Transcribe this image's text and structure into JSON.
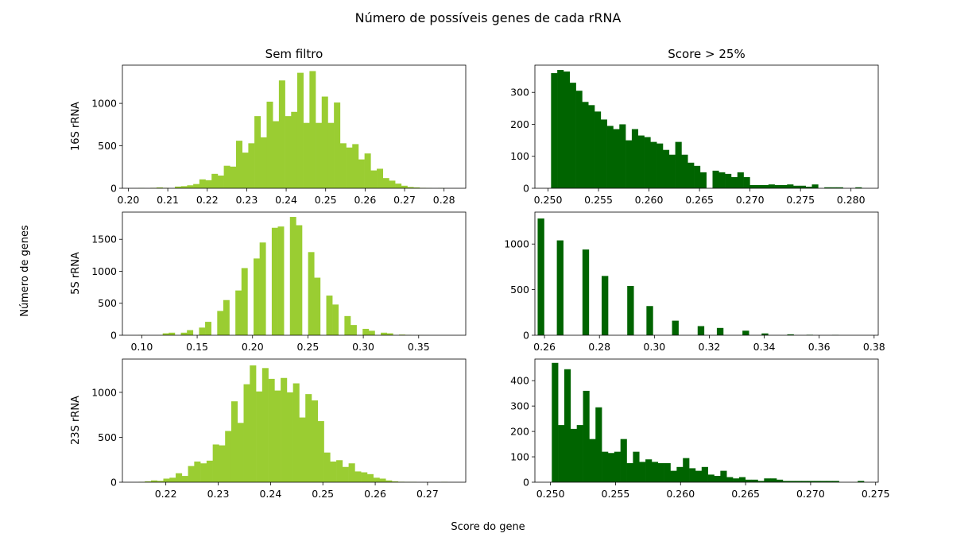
{
  "figure": {
    "title": "Número de possíveis genes de cada rRNA",
    "xlabel": "Score do gene",
    "ylabel": "Número de genes",
    "columns": [
      "Sem filtro",
      "Score > 25%"
    ],
    "rows": [
      "16S rRNA",
      "5S rRNA",
      "23S rRNA"
    ]
  },
  "colors": {
    "unfiltered": "#9acd32",
    "filtered": "#006400"
  },
  "chart_data": [
    {
      "id": "16s-unfiltered",
      "type": "histogram",
      "row_label": "16S rRNA",
      "column_title": "Sem filtro",
      "color": "#9acd32",
      "xlim": [
        0.1985,
        0.2855
      ],
      "ylim": [
        0,
        1450
      ],
      "xticks": [
        0.2,
        0.21,
        0.22,
        0.23,
        0.24,
        0.25,
        0.26,
        0.27,
        0.28
      ],
      "xtick_labels": [
        "0.20",
        "0.21",
        "0.22",
        "0.23",
        "0.24",
        "0.25",
        "0.26",
        "0.27",
        "0.28"
      ],
      "yticks": [
        0,
        500,
        1000
      ],
      "ytick_labels": [
        "0",
        "500",
        "1000"
      ],
      "bin_start": 0.2025,
      "bin_width": 0.00155,
      "counts": [
        3,
        0,
        5,
        10,
        5,
        0,
        20,
        25,
        35,
        50,
        105,
        95,
        170,
        150,
        265,
        255,
        560,
        420,
        530,
        850,
        600,
        1020,
        790,
        1270,
        850,
        900,
        1360,
        770,
        1380,
        770,
        1080,
        770,
        1010,
        530,
        480,
        520,
        340,
        410,
        210,
        230,
        120,
        90,
        55,
        30,
        15,
        10,
        5,
        3,
        0,
        3
      ]
    },
    {
      "id": "16s-filtered",
      "type": "histogram",
      "row_label": "16S rRNA",
      "column_title": "Score > 25%",
      "color": "#006400",
      "xlim": [
        0.2487,
        0.2827
      ],
      "ylim": [
        0,
        385
      ],
      "xticks": [
        0.25,
        0.255,
        0.26,
        0.265,
        0.27,
        0.275,
        0.28
      ],
      "xtick_labels": [
        "0.250",
        "0.255",
        "0.260",
        "0.265",
        "0.270",
        "0.275",
        "0.280"
      ],
      "yticks": [
        0,
        100,
        200,
        300
      ],
      "ytick_labels": [
        "0",
        "100",
        "200",
        "300"
      ],
      "bin_start": 0.2503,
      "bin_width": 0.000615,
      "counts": [
        360,
        370,
        365,
        330,
        305,
        270,
        260,
        240,
        215,
        195,
        185,
        200,
        150,
        185,
        165,
        160,
        145,
        140,
        120,
        105,
        145,
        105,
        80,
        70,
        50,
        0,
        55,
        50,
        45,
        35,
        50,
        35,
        10,
        10,
        10,
        12,
        10,
        10,
        12,
        8,
        8,
        5,
        12,
        0,
        3,
        3,
        3,
        0,
        0,
        3
      ]
    },
    {
      "id": "5s-unfiltered",
      "type": "histogram",
      "row_label": "5S rRNA",
      "column_title": "Sem filtro",
      "color": "#9acd32",
      "xlim": [
        0.0825,
        0.3925
      ],
      "ylim": [
        0,
        1925
      ],
      "xticks": [
        0.1,
        0.15,
        0.2,
        0.25,
        0.3,
        0.35
      ],
      "xtick_labels": [
        "0.10",
        "0.15",
        "0.20",
        "0.25",
        "0.30",
        "0.35"
      ],
      "yticks": [
        0,
        500,
        1000,
        1500
      ],
      "ytick_labels": [
        "0",
        "500",
        "1000",
        "1500"
      ],
      "bin_start": 0.097,
      "bin_width": 0.00547,
      "counts": [
        3,
        0,
        0,
        0,
        30,
        40,
        0,
        40,
        80,
        0,
        120,
        210,
        0,
        380,
        550,
        0,
        700,
        1050,
        0,
        1200,
        1450,
        0,
        1680,
        1700,
        0,
        1850,
        1720,
        0,
        1300,
        900,
        0,
        620,
        480,
        0,
        300,
        160,
        0,
        100,
        70,
        0,
        40,
        30,
        0,
        10,
        5,
        0,
        2,
        1,
        0,
        0
      ]
    },
    {
      "id": "5s-filtered",
      "type": "histogram",
      "row_label": "5S rRNA",
      "column_title": "Score > 25%",
      "color": "#006400",
      "xlim": [
        0.2565,
        0.3815
      ],
      "ylim": [
        0,
        1350
      ],
      "xticks": [
        0.26,
        0.28,
        0.3,
        0.32,
        0.34,
        0.36,
        0.38
      ],
      "xtick_labels": [
        "0.26",
        "0.28",
        "0.30",
        "0.32",
        "0.34",
        "0.36",
        "0.38"
      ],
      "yticks": [
        0,
        500,
        1000
      ],
      "ytick_labels": [
        "0",
        "500",
        "1000"
      ],
      "bin_start": 0.2575,
      "bin_width": 0.00233,
      "counts": [
        1280,
        0,
        0,
        1040,
        0,
        0,
        0,
        940,
        0,
        0,
        650,
        0,
        0,
        0,
        540,
        0,
        0,
        320,
        0,
        0,
        0,
        160,
        0,
        0,
        0,
        100,
        0,
        0,
        80,
        0,
        0,
        0,
        50,
        0,
        0,
        20,
        0,
        0,
        0,
        10,
        0,
        0,
        5,
        0,
        0,
        0,
        3,
        0,
        0,
        0
      ]
    },
    {
      "id": "23s-unfiltered",
      "type": "histogram",
      "row_label": "23S rRNA",
      "column_title": "Sem filtro",
      "color": "#9acd32",
      "xlim": [
        0.2117,
        0.2773
      ],
      "ylim": [
        0,
        1370
      ],
      "xticks": [
        0.22,
        0.23,
        0.24,
        0.25,
        0.26,
        0.27
      ],
      "xtick_labels": [
        "0.22",
        "0.23",
        "0.24",
        "0.25",
        "0.26",
        "0.27"
      ],
      "yticks": [
        0,
        500,
        1000
      ],
      "ytick_labels": [
        "0",
        "500",
        "1000"
      ],
      "bin_start": 0.2148,
      "bin_width": 0.00118,
      "counts": [
        3,
        10,
        20,
        15,
        40,
        50,
        100,
        70,
        180,
        230,
        210,
        240,
        420,
        410,
        570,
        900,
        660,
        1090,
        1300,
        1010,
        1270,
        1150,
        1020,
        1160,
        1000,
        1100,
        720,
        980,
        910,
        680,
        330,
        230,
        245,
        170,
        210,
        120,
        110,
        90,
        50,
        40,
        20,
        10,
        5,
        3,
        3,
        0,
        0,
        0,
        0,
        3
      ]
    },
    {
      "id": "23s-filtered",
      "type": "histogram",
      "row_label": "23S rRNA",
      "column_title": "Score > 25%",
      "color": "#006400",
      "xlim": [
        0.2488,
        0.2752
      ],
      "ylim": [
        0,
        485
      ],
      "xticks": [
        0.25,
        0.255,
        0.26,
        0.265,
        0.27,
        0.275
      ],
      "xtick_labels": [
        "0.250",
        "0.255",
        "0.260",
        "0.265",
        "0.270",
        "0.275"
      ],
      "yticks": [
        0,
        100,
        200,
        300,
        400
      ],
      "ytick_labels": [
        "0",
        "100",
        "200",
        "300",
        "400"
      ],
      "bin_start": 0.2501,
      "bin_width": 0.00048,
      "counts": [
        470,
        225,
        445,
        210,
        225,
        360,
        170,
        295,
        120,
        115,
        120,
        170,
        75,
        120,
        80,
        90,
        80,
        75,
        75,
        45,
        60,
        95,
        55,
        45,
        60,
        30,
        25,
        45,
        20,
        15,
        20,
        10,
        10,
        5,
        15,
        15,
        10,
        5,
        5,
        5,
        5,
        5,
        5,
        5,
        5,
        5,
        0,
        0,
        0,
        5
      ]
    }
  ]
}
